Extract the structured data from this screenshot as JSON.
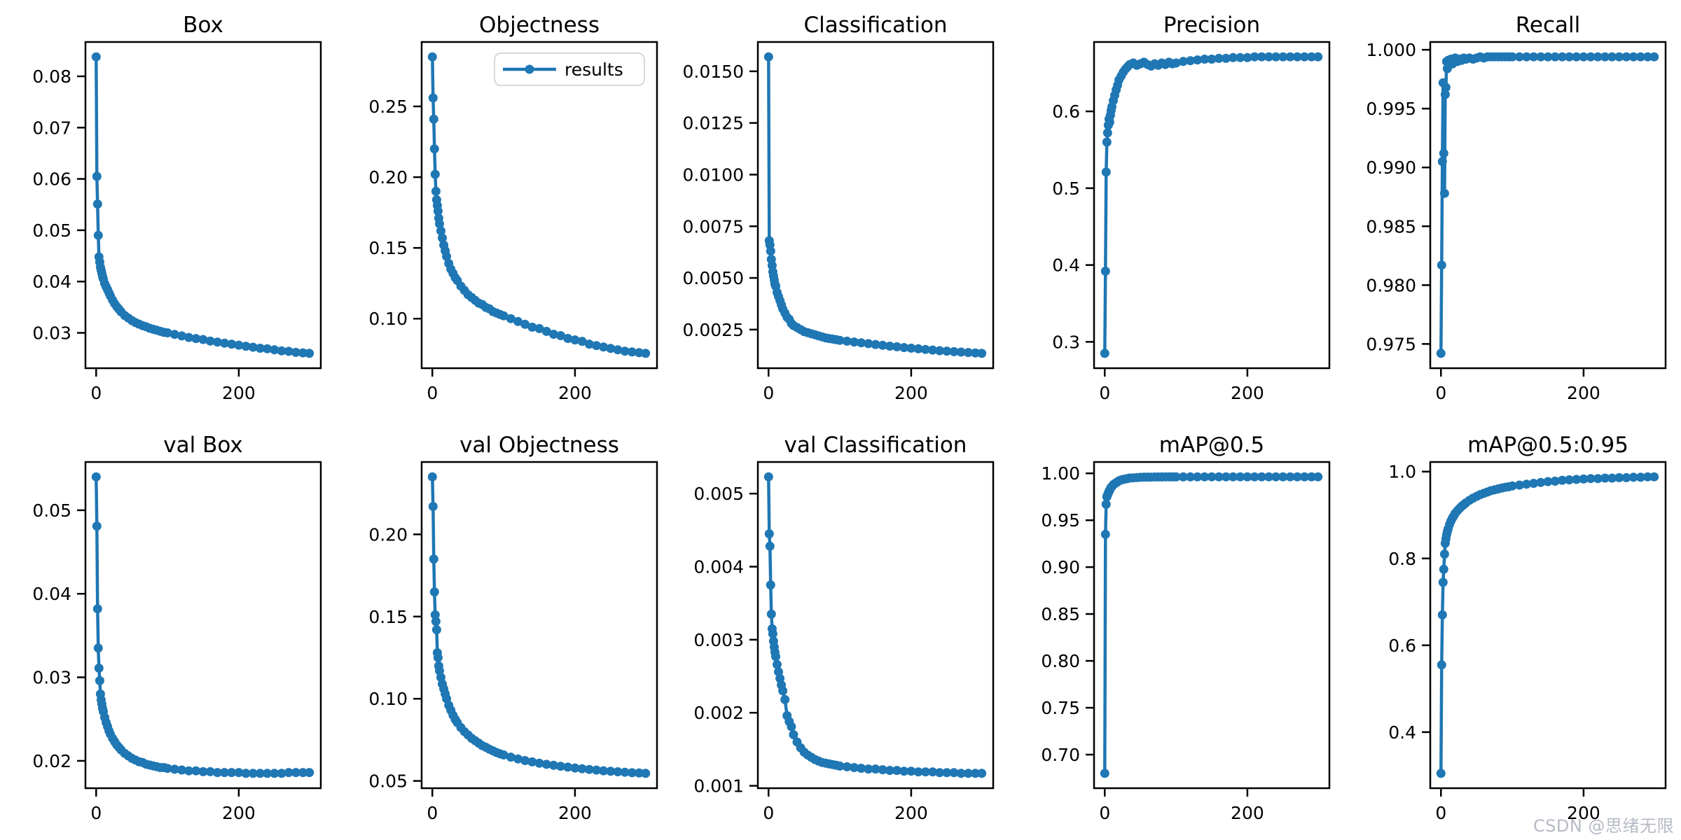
{
  "figure": {
    "background": "#ffffff",
    "accent_line_color": "#1f77b4",
    "axis_color": "#000000",
    "legend_label": "results",
    "legend_border_color": "#d8d8d8",
    "watermark": "CSDN @思绪无限",
    "watermark_color": "#b6bac4"
  },
  "chart_data": {
    "type": "line",
    "layout": "2 rows x 5 cols",
    "grid": "off",
    "legend_position": "upper right of Objectness subplot",
    "series_name": "results",
    "xlim": [
      -15,
      315
    ],
    "xticks": [
      0,
      200
    ],
    "epochs": [
      0,
      1,
      2,
      3,
      4,
      5,
      6,
      7,
      8,
      9,
      10,
      12,
      14,
      16,
      18,
      20,
      23,
      26,
      29,
      32,
      35,
      40,
      45,
      50,
      55,
      60,
      65,
      70,
      75,
      80,
      85,
      90,
      95,
      100,
      110,
      120,
      130,
      140,
      150,
      160,
      170,
      180,
      190,
      200,
      210,
      220,
      230,
      240,
      250,
      260,
      270,
      280,
      290,
      299
    ],
    "subplots": [
      {
        "slug": "box",
        "title": "Box",
        "legend": false,
        "ylim": [
          0.02311,
          0.08669
        ],
        "yticks": [
          0.03,
          0.04,
          0.05,
          0.06,
          0.07,
          0.08
        ],
        "ytick_decimals": 2,
        "y": [
          0.0838,
          0.0605,
          0.0551,
          0.049,
          0.0448,
          0.0438,
          0.0428,
          0.0422,
          0.0416,
          0.041,
          0.0405,
          0.0396,
          0.039,
          0.0384,
          0.0378,
          0.0372,
          0.0364,
          0.0357,
          0.0351,
          0.0346,
          0.0341,
          0.0334,
          0.0329,
          0.0324,
          0.032,
          0.0317,
          0.0314,
          0.0312,
          0.0309,
          0.0307,
          0.0305,
          0.0303,
          0.0301,
          0.03,
          0.0297,
          0.0294,
          0.0291,
          0.0289,
          0.0287,
          0.0284,
          0.0282,
          0.028,
          0.0278,
          0.0276,
          0.0274,
          0.0272,
          0.027,
          0.0269,
          0.0267,
          0.0265,
          0.0264,
          0.0262,
          0.0261,
          0.026
        ]
      },
      {
        "slug": "objectness",
        "title": "Objectness",
        "legend": true,
        "ylim": [
          0.065,
          0.2955
        ],
        "yticks": [
          0.1,
          0.15,
          0.2,
          0.25
        ],
        "ytick_decimals": 2,
        "y": [
          0.285,
          0.256,
          0.241,
          0.22,
          0.202,
          0.19,
          0.184,
          0.18,
          0.176,
          0.171,
          0.167,
          0.162,
          0.157,
          0.152,
          0.148,
          0.144,
          0.139,
          0.135,
          0.132,
          0.129,
          0.127,
          0.123,
          0.12,
          0.117,
          0.115,
          0.113,
          0.111,
          0.11,
          0.108,
          0.107,
          0.105,
          0.104,
          0.103,
          0.102,
          0.1,
          0.098,
          0.096,
          0.094,
          0.093,
          0.091,
          0.089,
          0.088,
          0.086,
          0.085,
          0.084,
          0.082,
          0.081,
          0.08,
          0.079,
          0.078,
          0.077,
          0.0765,
          0.076,
          0.0755
        ]
      },
      {
        "slug": "classification",
        "title": "Classification",
        "legend": false,
        "ylim": [
          0.000632,
          0.016418
        ],
        "yticks": [
          0.0025,
          0.005,
          0.0075,
          0.01,
          0.0125,
          0.015
        ],
        "ytick_decimals": 4,
        "y": [
          0.0157,
          0.0068,
          0.0066,
          0.0063,
          0.0059,
          0.0056,
          0.0053,
          0.0051,
          0.0049,
          0.0047,
          0.0046,
          0.0043,
          0.0041,
          0.0039,
          0.0037,
          0.0035,
          0.0033,
          0.0031,
          0.003,
          0.0028,
          0.0027,
          0.0026,
          0.0025,
          0.0024,
          0.00235,
          0.0023,
          0.00225,
          0.0022,
          0.00215,
          0.0021,
          0.00207,
          0.00204,
          0.00201,
          0.00198,
          0.00194,
          0.0019,
          0.00186,
          0.00182,
          0.00178,
          0.00174,
          0.0017,
          0.00167,
          0.00163,
          0.0016,
          0.00157,
          0.00154,
          0.00151,
          0.00148,
          0.00146,
          0.00143,
          0.00141,
          0.00139,
          0.00137,
          0.00135
        ]
      },
      {
        "slug": "precision",
        "title": "Precision",
        "legend": false,
        "ylim": [
          0.2657,
          0.6903
        ],
        "yticks": [
          0.3,
          0.4,
          0.5,
          0.6
        ],
        "ytick_decimals": 1,
        "y": [
          0.285,
          0.392,
          0.521,
          0.56,
          0.572,
          0.582,
          0.59,
          0.586,
          0.595,
          0.601,
          0.606,
          0.614,
          0.621,
          0.628,
          0.634,
          0.641,
          0.646,
          0.651,
          0.655,
          0.658,
          0.661,
          0.663,
          0.66,
          0.662,
          0.664,
          0.661,
          0.659,
          0.662,
          0.66,
          0.663,
          0.661,
          0.664,
          0.662,
          0.663,
          0.665,
          0.666,
          0.667,
          0.668,
          0.668,
          0.669,
          0.669,
          0.67,
          0.67,
          0.67,
          0.671,
          0.671,
          0.671,
          0.671,
          0.671,
          0.671,
          0.671,
          0.671,
          0.671,
          0.671
        ]
      },
      {
        "slug": "recall",
        "title": "Recall",
        "legend": false,
        "ylim": [
          0.97294,
          1.00066
        ],
        "yticks": [
          0.975,
          0.98,
          0.985,
          0.99,
          0.995,
          1.0
        ],
        "ytick_decimals": 3,
        "y": [
          0.9742,
          0.9817,
          0.9905,
          0.9972,
          0.9912,
          0.9878,
          0.9962,
          0.9968,
          0.999,
          0.9984,
          0.9991,
          0.9989,
          0.9992,
          0.9988,
          0.9991,
          0.9993,
          0.999,
          0.9992,
          0.9991,
          0.9993,
          0.9992,
          0.9993,
          0.9992,
          0.9993,
          0.9994,
          0.9993,
          0.9994,
          0.9994,
          0.9994,
          0.9994,
          0.9994,
          0.9994,
          0.9994,
          0.9994,
          0.9994,
          0.9994,
          0.9994,
          0.9994,
          0.9994,
          0.9994,
          0.9994,
          0.9994,
          0.9994,
          0.9994,
          0.9994,
          0.9994,
          0.9994,
          0.9994,
          0.9994,
          0.9994,
          0.9994,
          0.9994,
          0.9994,
          0.9994
        ]
      },
      {
        "slug": "val-box",
        "title": "val Box",
        "legend": false,
        "ylim": [
          0.016725,
          0.055775
        ],
        "yticks": [
          0.02,
          0.03,
          0.04,
          0.05
        ],
        "ytick_decimals": 2,
        "y": [
          0.054,
          0.0481,
          0.0382,
          0.0335,
          0.0311,
          0.0296,
          0.028,
          0.0273,
          0.0268,
          0.0263,
          0.0259,
          0.0252,
          0.0246,
          0.0241,
          0.0236,
          0.0232,
          0.0227,
          0.0223,
          0.0219,
          0.0216,
          0.0213,
          0.0209,
          0.0206,
          0.0203,
          0.0201,
          0.0199,
          0.0198,
          0.0196,
          0.0195,
          0.0194,
          0.0193,
          0.0192,
          0.0192,
          0.0191,
          0.019,
          0.0189,
          0.0188,
          0.0188,
          0.0187,
          0.0187,
          0.0186,
          0.0186,
          0.0186,
          0.0186,
          0.0185,
          0.0185,
          0.0185,
          0.0185,
          0.0185,
          0.0185,
          0.0186,
          0.0186,
          0.0186,
          0.0186
        ]
      },
      {
        "slug": "val-objectness",
        "title": "val Objectness",
        "legend": false,
        "ylim": [
          0.04558,
          0.24402
        ],
        "yticks": [
          0.05,
          0.1,
          0.15,
          0.2
        ],
        "ytick_decimals": 2,
        "y": [
          0.235,
          0.217,
          0.185,
          0.165,
          0.151,
          0.147,
          0.142,
          0.128,
          0.125,
          0.12,
          0.117,
          0.113,
          0.109,
          0.106,
          0.103,
          0.1,
          0.096,
          0.093,
          0.09,
          0.0875,
          0.0855,
          0.0825,
          0.08,
          0.078,
          0.076,
          0.0745,
          0.073,
          0.0715,
          0.0705,
          0.0693,
          0.0683,
          0.0673,
          0.0665,
          0.0658,
          0.0645,
          0.0634,
          0.0624,
          0.0616,
          0.0608,
          0.0601,
          0.0595,
          0.0589,
          0.0584,
          0.0579,
          0.0574,
          0.057,
          0.0566,
          0.0562,
          0.0559,
          0.0556,
          0.0553,
          0.055,
          0.0548,
          0.0546
        ]
      },
      {
        "slug": "val-classification",
        "title": "val Classification",
        "legend": false,
        "ylim": [
          0.000967,
          0.005433
        ],
        "yticks": [
          0.001,
          0.002,
          0.003,
          0.004,
          0.005
        ],
        "ytick_decimals": 3,
        "y": [
          0.00523,
          0.00445,
          0.00428,
          0.00375,
          0.00335,
          0.00315,
          0.00308,
          0.00298,
          0.0029,
          0.00283,
          0.00277,
          0.00266,
          0.00256,
          0.00247,
          0.00238,
          0.0023,
          0.00218,
          0.00196,
          0.00188,
          0.00181,
          0.0017,
          0.0016,
          0.00152,
          0.00146,
          0.00142,
          0.00139,
          0.00136,
          0.00134,
          0.00132,
          0.00131,
          0.0013,
          0.00129,
          0.00128,
          0.00127,
          0.00126,
          0.00125,
          0.00124,
          0.00123,
          0.00123,
          0.00122,
          0.00121,
          0.00121,
          0.0012,
          0.0012,
          0.00119,
          0.00119,
          0.00119,
          0.00118,
          0.00118,
          0.00118,
          0.00117,
          0.00117,
          0.00117,
          0.00117
        ]
      },
      {
        "slug": "map-0-5",
        "title": "mAP@0.5",
        "legend": false,
        "ylim": [
          0.664185,
          1.012115
        ],
        "yticks": [
          0.7,
          0.75,
          0.8,
          0.85,
          0.9,
          0.95,
          1.0
        ],
        "ytick_decimals": 2,
        "y": [
          0.68,
          0.935,
          0.967,
          0.975,
          0.977,
          0.979,
          0.981,
          0.982,
          0.984,
          0.985,
          0.986,
          0.988,
          0.989,
          0.99,
          0.991,
          0.992,
          0.993,
          0.9935,
          0.994,
          0.9945,
          0.995,
          0.9952,
          0.9955,
          0.9958,
          0.996,
          0.996,
          0.996,
          0.9961,
          0.9961,
          0.9961,
          0.9962,
          0.9962,
          0.9962,
          0.9962,
          0.9962,
          0.9962,
          0.9963,
          0.9963,
          0.9963,
          0.9963,
          0.9963,
          0.9963,
          0.9963,
          0.9963,
          0.9963,
          0.9963,
          0.9963,
          0.9963,
          0.9963,
          0.9963,
          0.9963,
          0.9963,
          0.9963,
          0.9963
        ]
      },
      {
        "slug": "map-0-5-0-95",
        "title": "mAP@0.5:0.95",
        "legend": false,
        "ylim": [
          0.27085,
          1.02215
        ],
        "yticks": [
          0.4,
          0.6,
          0.8,
          1.0
        ],
        "ytick_decimals": 1,
        "y": [
          0.305,
          0.555,
          0.67,
          0.745,
          0.775,
          0.81,
          0.835,
          0.845,
          0.855,
          0.862,
          0.868,
          0.878,
          0.886,
          0.893,
          0.898,
          0.904,
          0.91,
          0.915,
          0.92,
          0.924,
          0.928,
          0.934,
          0.939,
          0.943,
          0.947,
          0.95,
          0.953,
          0.956,
          0.958,
          0.96,
          0.962,
          0.964,
          0.965,
          0.967,
          0.969,
          0.971,
          0.973,
          0.975,
          0.977,
          0.978,
          0.98,
          0.981,
          0.982,
          0.983,
          0.984,
          0.984,
          0.985,
          0.985,
          0.986,
          0.986,
          0.987,
          0.987,
          0.988,
          0.988
        ]
      }
    ]
  }
}
